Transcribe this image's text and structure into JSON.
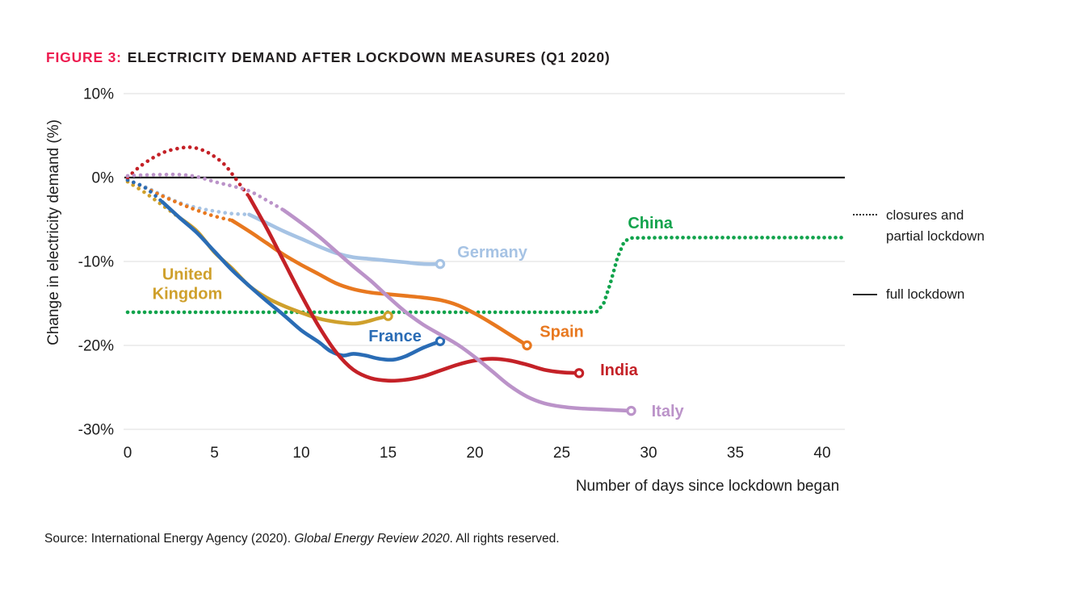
{
  "header": {
    "figure_label": "FIGURE 3:",
    "title": "ELECTRICITY DEMAND AFTER LOCKDOWN MEASURES (Q1 2020)",
    "accent_color": "#ed1b4f"
  },
  "legend": {
    "partial": {
      "line1": "closures and",
      "line2": "partial lockdown"
    },
    "full": {
      "label": "full lockdown"
    }
  },
  "source": {
    "prefix": "Source: International Energy Agency (2020). ",
    "italic": "Global Energy Review 2020",
    "suffix": ". All rights reserved."
  },
  "chart_data": {
    "type": "line",
    "title": "FIGURE 3: ELECTRICITY DEMAND AFTER LOCKDOWN MEASURES (Q1 2020)",
    "xlabel": "Number of days since lockdown began",
    "ylabel": "Change in electricity demand (%)",
    "xlim": [
      0,
      41.3
    ],
    "ylim": [
      -30,
      10
    ],
    "grid": "horizontal",
    "legend_position": "right",
    "line_style_meaning": {
      "dotted": "closures and partial lockdown",
      "solid": "full lockdown"
    },
    "x_ticks": [
      {
        "v": 0,
        "label": "0"
      },
      {
        "v": 5,
        "label": "5"
      },
      {
        "v": 10,
        "label": "10"
      },
      {
        "v": 15,
        "label": "15"
      },
      {
        "v": 20,
        "label": "20"
      },
      {
        "v": 25,
        "label": "25"
      },
      {
        "v": 30,
        "label": "30"
      },
      {
        "v": 35,
        "label": "35"
      },
      {
        "v": 40,
        "label": "40"
      }
    ],
    "y_ticks": [
      {
        "v": 10,
        "label": "10%"
      },
      {
        "v": 0,
        "label": "0%"
      },
      {
        "v": -10,
        "label": "-10%"
      },
      {
        "v": -20,
        "label": "-20%"
      },
      {
        "v": -30,
        "label": "-30%"
      }
    ],
    "series": [
      {
        "name": "China",
        "color": "#11a34c",
        "smooth": false,
        "end_marker": false,
        "label": {
          "text_lines": [
            "China"
          ],
          "day": 30.1,
          "pct": -5.4
        },
        "dotted_points": [
          [
            0,
            -16.05
          ],
          [
            2,
            -16.05
          ],
          [
            4,
            -16.05
          ],
          [
            6,
            -16.05
          ],
          [
            8,
            -16.05
          ],
          [
            10,
            -16.05
          ],
          [
            12,
            -16.05
          ],
          [
            14,
            -16.05
          ],
          [
            16,
            -16.05
          ],
          [
            18,
            -16.05
          ],
          [
            20,
            -16.05
          ],
          [
            22,
            -16.05
          ],
          [
            24,
            -16.05
          ],
          [
            26,
            -16.05
          ],
          [
            27,
            -16.0
          ],
          [
            27.4,
            -15.1
          ],
          [
            27.8,
            -12.6
          ],
          [
            28.2,
            -9.6
          ],
          [
            28.6,
            -7.6
          ],
          [
            29,
            -7.2
          ],
          [
            31,
            -7.15
          ],
          [
            33,
            -7.15
          ],
          [
            35,
            -7.15
          ],
          [
            37,
            -7.15
          ],
          [
            39,
            -7.15
          ],
          [
            41.3,
            -7.15
          ]
        ],
        "solid_points": []
      },
      {
        "name": "Germany",
        "color": "#a6c3e4",
        "smooth": true,
        "end_marker": true,
        "label": {
          "text_lines": [
            "Germany"
          ],
          "day": 21.0,
          "pct": -8.85
        },
        "dotted_points": [
          [
            0,
            -0.3
          ],
          [
            1,
            -1.1
          ],
          [
            2,
            -2.1
          ],
          [
            3,
            -3.0
          ],
          [
            4,
            -3.6
          ],
          [
            5,
            -4.0
          ],
          [
            6,
            -4.3
          ],
          [
            7,
            -4.4
          ]
        ],
        "solid_points": [
          [
            7,
            -4.4
          ],
          [
            8,
            -5.4
          ],
          [
            9,
            -6.4
          ],
          [
            10,
            -7.3
          ],
          [
            11,
            -8.2
          ],
          [
            12,
            -9.0
          ],
          [
            13,
            -9.5
          ],
          [
            14,
            -9.7
          ],
          [
            15,
            -9.9
          ],
          [
            16,
            -10.1
          ],
          [
            17,
            -10.3
          ],
          [
            18,
            -10.3
          ]
        ]
      },
      {
        "name": "Spain",
        "color": "#e8781f",
        "smooth": true,
        "end_marker": true,
        "label": {
          "text_lines": [
            "Spain"
          ],
          "day": 25.0,
          "pct": -18.3
        },
        "dotted_points": [
          [
            0,
            -0.3
          ],
          [
            1,
            -1.2
          ],
          [
            2,
            -2.2
          ],
          [
            3,
            -3.1
          ],
          [
            4,
            -3.9
          ],
          [
            5,
            -4.6
          ],
          [
            6,
            -5.1
          ]
        ],
        "solid_points": [
          [
            6,
            -5.1
          ],
          [
            7,
            -6.4
          ],
          [
            8,
            -7.8
          ],
          [
            9,
            -9.2
          ],
          [
            10,
            -10.4
          ],
          [
            11,
            -11.5
          ],
          [
            12,
            -12.6
          ],
          [
            13,
            -13.3
          ],
          [
            14,
            -13.7
          ],
          [
            15,
            -13.9
          ],
          [
            16,
            -14.1
          ],
          [
            17,
            -14.3
          ],
          [
            18,
            -14.6
          ],
          [
            19,
            -15.2
          ],
          [
            20,
            -16.2
          ],
          [
            21,
            -17.4
          ],
          [
            22,
            -18.7
          ],
          [
            23,
            -20.0
          ]
        ]
      },
      {
        "name": "United Kingdom",
        "color": "#cfa02c",
        "smooth": true,
        "end_marker": true,
        "label": {
          "text_lines": [
            "United",
            "Kingdom"
          ],
          "day": 3.44,
          "pct": -11.5
        },
        "dotted_points": [
          [
            0,
            -0.5
          ],
          [
            1,
            -1.8
          ],
          [
            2,
            -3.3
          ],
          [
            3,
            -4.8
          ]
        ],
        "solid_points": [
          [
            3,
            -4.8
          ],
          [
            4,
            -6.4
          ],
          [
            5,
            -8.9
          ],
          [
            6,
            -10.8
          ],
          [
            7,
            -12.9
          ],
          [
            8,
            -14.3
          ],
          [
            9,
            -15.3
          ],
          [
            10,
            -16.1
          ],
          [
            11,
            -16.8
          ],
          [
            12,
            -17.2
          ],
          [
            13,
            -17.4
          ],
          [
            13.7,
            -17.2
          ],
          [
            14.4,
            -16.8
          ],
          [
            15,
            -16.5
          ]
        ]
      },
      {
        "name": "France",
        "color": "#2a6cb5",
        "smooth": true,
        "end_marker": true,
        "label": {
          "text_lines": [
            "France"
          ],
          "day": 15.4,
          "pct": -18.85
        },
        "dotted_points": [
          [
            0,
            -0.3
          ],
          [
            1,
            -1.2
          ],
          [
            2,
            -2.9
          ]
        ],
        "solid_points": [
          [
            2,
            -2.9
          ],
          [
            3,
            -4.8
          ],
          [
            4,
            -6.6
          ],
          [
            5,
            -8.8
          ],
          [
            6,
            -11.0
          ],
          [
            7,
            -12.9
          ],
          [
            8,
            -14.7
          ],
          [
            9,
            -16.4
          ],
          [
            10,
            -18.2
          ],
          [
            11,
            -19.6
          ],
          [
            11.7,
            -20.7
          ],
          [
            12.4,
            -21.2
          ],
          [
            13,
            -21.0
          ],
          [
            13.7,
            -21.2
          ],
          [
            14.5,
            -21.6
          ],
          [
            15.3,
            -21.7
          ],
          [
            16,
            -21.3
          ],
          [
            17,
            -20.3
          ],
          [
            18,
            -19.5
          ]
        ]
      },
      {
        "name": "India",
        "color": "#c42127",
        "smooth": true,
        "end_marker": true,
        "label": {
          "text_lines": [
            "India"
          ],
          "day": 28.3,
          "pct": -22.9
        },
        "dotted_points": [
          [
            0,
            0
          ],
          [
            0.7,
            1.3
          ],
          [
            1.5,
            2.4
          ],
          [
            2.2,
            3.1
          ],
          [
            3,
            3.5
          ],
          [
            3.7,
            3.6
          ],
          [
            4.4,
            3.2
          ],
          [
            5,
            2.5
          ],
          [
            5.6,
            1.5
          ],
          [
            6.1,
            0.2
          ],
          [
            6.6,
            -1.2
          ],
          [
            7,
            -2.3
          ]
        ],
        "solid_points": [
          [
            7,
            -2.3
          ],
          [
            8,
            -6.0
          ],
          [
            9,
            -10.0
          ],
          [
            10,
            -14.0
          ],
          [
            11,
            -17.7
          ],
          [
            12,
            -20.8
          ],
          [
            13,
            -22.9
          ],
          [
            14,
            -23.9
          ],
          [
            15,
            -24.2
          ],
          [
            16,
            -24.1
          ],
          [
            17,
            -23.7
          ],
          [
            18,
            -23.0
          ],
          [
            19,
            -22.3
          ],
          [
            20,
            -21.8
          ],
          [
            21,
            -21.6
          ],
          [
            22,
            -21.8
          ],
          [
            23,
            -22.3
          ],
          [
            24,
            -22.9
          ],
          [
            25,
            -23.2
          ],
          [
            26,
            -23.3
          ]
        ]
      },
      {
        "name": "Italy",
        "color": "#bb93c9",
        "smooth": true,
        "end_marker": true,
        "label": {
          "text_lines": [
            "Italy"
          ],
          "day": 31.1,
          "pct": -27.8
        },
        "dotted_points": [
          [
            0,
            0.2
          ],
          [
            1,
            0.3
          ],
          [
            2,
            0.35
          ],
          [
            3,
            0.35
          ],
          [
            4,
            0.1
          ],
          [
            5,
            -0.5
          ],
          [
            6,
            -1.0
          ],
          [
            7,
            -1.6
          ],
          [
            8,
            -2.7
          ],
          [
            9,
            -3.9
          ]
        ],
        "solid_points": [
          [
            9,
            -3.9
          ],
          [
            10,
            -5.4
          ],
          [
            11,
            -7.0
          ],
          [
            12,
            -8.8
          ],
          [
            13,
            -10.6
          ],
          [
            14,
            -12.3
          ],
          [
            15,
            -14.2
          ],
          [
            16,
            -16.0
          ],
          [
            17,
            -17.5
          ],
          [
            18,
            -18.7
          ],
          [
            19,
            -19.9
          ],
          [
            20,
            -21.4
          ],
          [
            21,
            -23.1
          ],
          [
            22,
            -24.8
          ],
          [
            23,
            -26.1
          ],
          [
            24,
            -26.9
          ],
          [
            25,
            -27.3
          ],
          [
            26,
            -27.5
          ],
          [
            27,
            -27.6
          ],
          [
            28,
            -27.7
          ],
          [
            29,
            -27.8
          ]
        ]
      }
    ]
  }
}
